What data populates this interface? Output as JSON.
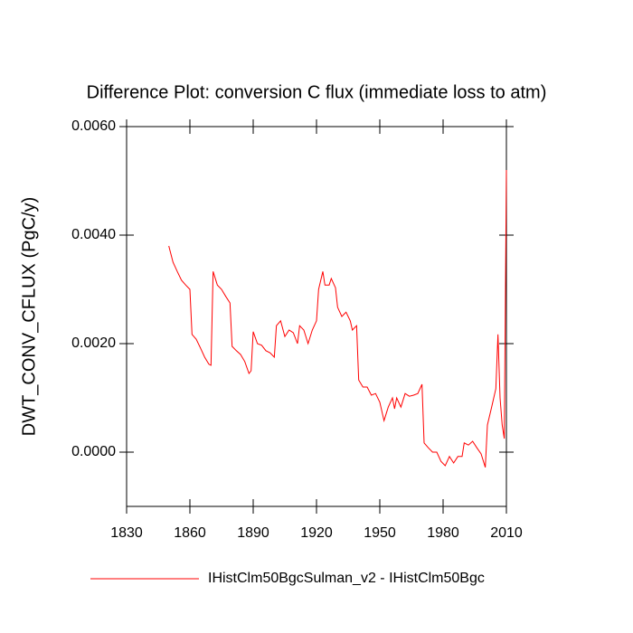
{
  "chart_data": {
    "type": "line",
    "title": "Difference Plot: conversion C flux (immediate loss to atm)",
    "y_label": "DWT_CONV_CFLUX  (PgC/y)",
    "xlim": [
      1830,
      2010
    ],
    "xticks": [
      1830,
      1860,
      1890,
      1920,
      1950,
      1980,
      2010
    ],
    "ylim": [
      -0.001,
      0.006
    ],
    "yticks": [
      {
        "value": 0,
        "label": "0.0000"
      },
      {
        "value": 0.002,
        "label": "0.0020"
      },
      {
        "value": 0.004,
        "label": "0.0040"
      },
      {
        "value": 0.006,
        "label": "0.0060"
      }
    ],
    "x": [
      1850,
      1852,
      1854,
      1856,
      1858,
      1860,
      1861,
      1863,
      1865,
      1867,
      1869,
      1870,
      1871,
      1873,
      1875,
      1877,
      1879,
      1880,
      1882,
      1884,
      1886,
      1888,
      1889,
      1890,
      1892,
      1894,
      1896,
      1898,
      1900,
      1901,
      1903,
      1905,
      1907,
      1909,
      1911,
      1912,
      1914,
      1916,
      1918,
      1920,
      1921,
      1923,
      1924,
      1926,
      1927,
      1929,
      1930,
      1932,
      1934,
      1936,
      1937,
      1939,
      1940,
      1942,
      1944,
      1946,
      1948,
      1950,
      1952,
      1954,
      1956,
      1957,
      1958,
      1960,
      1962,
      1964,
      1966,
      1968,
      1970,
      1971,
      1973,
      1975,
      1977,
      1979,
      1981,
      1983,
      1985,
      1987,
      1989,
      1990,
      1992,
      1994,
      1996,
      1998,
      2000,
      2001,
      2003,
      2005,
      2006,
      2007,
      2008,
      2009,
      2010
    ],
    "series": [
      {
        "name": "IHistClm50BgcSulman_v2 - IHistClm50Bgc",
        "color": "#ff0000",
        "values": [
          0.0038,
          0.0035,
          0.00333,
          0.00317,
          0.00308,
          0.003,
          0.00217,
          0.00208,
          0.00192,
          0.00175,
          0.00162,
          0.0016,
          0.00333,
          0.00308,
          0.003,
          0.00287,
          0.00275,
          0.00195,
          0.00187,
          0.0018,
          0.00167,
          0.00145,
          0.0015,
          0.00222,
          0.002,
          0.00197,
          0.00187,
          0.00183,
          0.00175,
          0.00233,
          0.00242,
          0.00213,
          0.00225,
          0.0022,
          0.002,
          0.00233,
          0.00225,
          0.002,
          0.00225,
          0.00242,
          0.003,
          0.00333,
          0.00308,
          0.00308,
          0.0032,
          0.00303,
          0.00267,
          0.0025,
          0.00258,
          0.00242,
          0.00225,
          0.00233,
          0.00133,
          0.0012,
          0.0012,
          0.00105,
          0.00108,
          0.00092,
          0.00058,
          0.00083,
          0.001,
          0.0008,
          0.001,
          0.00083,
          0.00108,
          0.00103,
          0.00105,
          0.00108,
          0.00125,
          0.00017,
          8e-05,
          0,
          0,
          -0.00017,
          -0.00025,
          -8e-05,
          -0.0002,
          -8e-05,
          -8e-05,
          0.00017,
          0.00013,
          0.0002,
          8e-05,
          -3e-05,
          -0.00028,
          0.0005,
          0.00083,
          0.00117,
          0.00217,
          0.001,
          0.0005,
          0.00025,
          0.0052
        ]
      }
    ]
  }
}
